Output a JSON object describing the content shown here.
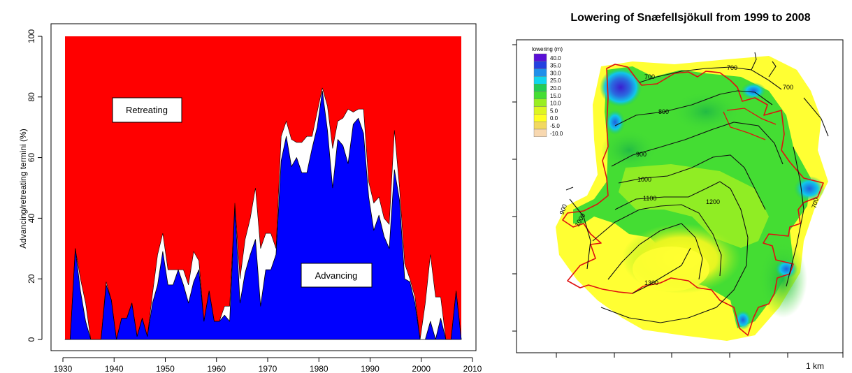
{
  "chart_data": [
    {
      "type": "area",
      "title": "",
      "xlabel": "",
      "ylabel": "Advancing/retreating termini (%)",
      "xlim": [
        1930,
        2010
      ],
      "ylim": [
        0,
        100
      ],
      "x_ticks": [
        1930,
        1940,
        1950,
        1960,
        1970,
        1980,
        1990,
        2000,
        2010
      ],
      "y_ticks": [
        0,
        20,
        40,
        60,
        80,
        100
      ],
      "grid": false,
      "annotations": [
        "Retreating",
        "Advancing"
      ],
      "colors": {
        "retreating": "#ff0000",
        "advancing": "#0000ff",
        "stationary": "#ffffff"
      },
      "x": [
        1931,
        1932,
        1933,
        1934,
        1935,
        1936,
        1937,
        1938,
        1939,
        1940,
        1941,
        1942,
        1943,
        1944,
        1945,
        1946,
        1947,
        1948,
        1949,
        1950,
        1951,
        1952,
        1953,
        1954,
        1955,
        1956,
        1957,
        1958,
        1959,
        1960,
        1961,
        1962,
        1963,
        1964,
        1965,
        1966,
        1967,
        1968,
        1969,
        1970,
        1971,
        1972,
        1973,
        1974,
        1975,
        1976,
        1977,
        1978,
        1979,
        1980,
        1981,
        1982,
        1983,
        1984,
        1985,
        1986,
        1987,
        1988,
        1989,
        1990,
        1991,
        1992,
        1993,
        1994,
        1995,
        1996,
        1997,
        1998,
        1999,
        2000,
        2001,
        2002,
        2003,
        2004,
        2005,
        2006,
        2007,
        2008
      ],
      "series": [
        {
          "name": "Advancing",
          "values": [
            0,
            0,
            30,
            16,
            6,
            0,
            0,
            0,
            18,
            13,
            0,
            7,
            7,
            12,
            1,
            7,
            1,
            12,
            18,
            29,
            18,
            18,
            23,
            18,
            12,
            19,
            23,
            6,
            16,
            6,
            6,
            8,
            6,
            44,
            12,
            22,
            28,
            33,
            11,
            23,
            23,
            28,
            59,
            67,
            57,
            60,
            55,
            55,
            63,
            70,
            82,
            69,
            50,
            66,
            64,
            58,
            71,
            73,
            68,
            47,
            36,
            41,
            34,
            30,
            56,
            46,
            20,
            19,
            12,
            0,
            0,
            6,
            0,
            7,
            0,
            0,
            16,
            0
          ]
        },
        {
          "name": "Retreating",
          "values": [
            100,
            100,
            70,
            80,
            88,
            100,
            100,
            100,
            81,
            87,
            100,
            93,
            93,
            88,
            99,
            93,
            99,
            85,
            72,
            65,
            77,
            77,
            77,
            77,
            82,
            71,
            74,
            94,
            84,
            94,
            94,
            89,
            89,
            55,
            80,
            67,
            60,
            50,
            70,
            65,
            65,
            70,
            33,
            28,
            34,
            35,
            35,
            33,
            33,
            25,
            17,
            23,
            37,
            28,
            27,
            24,
            25,
            24,
            24,
            48,
            55,
            53,
            60,
            62,
            31,
            50,
            75,
            80,
            86,
            100,
            88,
            72,
            86,
            86,
            100,
            100,
            84,
            100
          ]
        }
      ]
    },
    {
      "type": "heatmap",
      "title": "Lowering of Snæfellsjökull from 1999 to 2008",
      "legend_title": "lowering (m)",
      "legend_levels": [
        {
          "label": "40.0",
          "color": "#5a0fd6"
        },
        {
          "label": "35.0",
          "color": "#2340e0"
        },
        {
          "label": "30.0",
          "color": "#1f8fea"
        },
        {
          "label": "25.0",
          "color": "#10d5ee"
        },
        {
          "label": "20.0",
          "color": "#22cc55"
        },
        {
          "label": "15.0",
          "color": "#44dd33"
        },
        {
          "label": "10.0",
          "color": "#99ee22"
        },
        {
          "label": "5.0",
          "color": "#ddf522"
        },
        {
          "label": "0.0",
          "color": "#ffff22"
        },
        {
          "label": "-5.0",
          "color": "#f2d860"
        },
        {
          "label": "-10.0",
          "color": "#f8d8b0"
        }
      ],
      "contour_labels": [
        "700",
        "700",
        "700",
        "800",
        "900",
        "900",
        "1000",
        "1000",
        "1100",
        "1200",
        "1300",
        "700",
        "900"
      ],
      "scale_bar": "1 km"
    }
  ]
}
